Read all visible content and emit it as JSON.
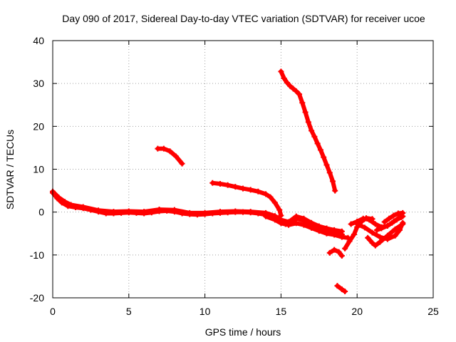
{
  "chart_data": {
    "type": "line",
    "title": "Day 090 of 2017, Sidereal Day-to-day VTEC variation (SDTVAR) for receiver ucoe",
    "xlabel": "GPS time / hours",
    "ylabel": "SDTVAR / TECUs",
    "xlim": [
      0,
      25
    ],
    "ylim": [
      -20,
      40
    ],
    "xticks": [
      0,
      5,
      10,
      15,
      20,
      25
    ],
    "yticks": [
      -20,
      -10,
      0,
      10,
      20,
      30,
      40
    ],
    "xtick_labels": [
      "0",
      "5",
      "10",
      "15",
      "20",
      "25"
    ],
    "ytick_labels": [
      "-20",
      "-10",
      "0",
      "10",
      "20",
      "30",
      "40"
    ],
    "grid": true,
    "legend": "none",
    "color": "#ff0000",
    "series": [
      {
        "name": "main-band-a",
        "points": [
          [
            0,
            4.5
          ],
          [
            0.3,
            3.2
          ],
          [
            0.6,
            2.2
          ],
          [
            1,
            1.4
          ],
          [
            1.5,
            1.1
          ],
          [
            2,
            0.9
          ],
          [
            2.5,
            0.5
          ],
          [
            3,
            0.1
          ],
          [
            3.5,
            -0.3
          ],
          [
            4,
            -0.3
          ],
          [
            4.5,
            -0.2
          ],
          [
            5,
            -0.1
          ],
          [
            5.5,
            -0.2
          ],
          [
            6,
            -0.3
          ],
          [
            6.5,
            -0.1
          ],
          [
            7,
            0.2
          ],
          [
            7.5,
            0.3
          ],
          [
            8,
            0.1
          ],
          [
            8.5,
            -0.3
          ],
          [
            9,
            -0.5
          ],
          [
            9.5,
            -0.6
          ],
          [
            10,
            -0.5
          ],
          [
            10.5,
            -0.3
          ],
          [
            11,
            -0.2
          ],
          [
            11.5,
            -0.1
          ],
          [
            12,
            0
          ],
          [
            12.5,
            0
          ],
          [
            13,
            -0.1
          ],
          [
            13.5,
            -0.3
          ],
          [
            14,
            -0.6
          ],
          [
            14.5,
            -1.2
          ],
          [
            15,
            -2.2
          ],
          [
            15.3,
            -2.8
          ],
          [
            15.6,
            -2.5
          ],
          [
            16,
            -1.5
          ],
          [
            16.5,
            -2
          ],
          [
            17,
            -3
          ],
          [
            17.5,
            -3.8
          ],
          [
            18,
            -4.3
          ],
          [
            18.5,
            -4.8
          ],
          [
            19,
            -5.2
          ]
        ]
      },
      {
        "name": "main-band-b",
        "points": [
          [
            0,
            4.8
          ],
          [
            0.4,
            3.4
          ],
          [
            0.8,
            2.4
          ],
          [
            1.2,
            1.7
          ],
          [
            2,
            1.2
          ],
          [
            3,
            0.4
          ],
          [
            4,
            0.1
          ],
          [
            5,
            0.2
          ],
          [
            6,
            0.1
          ],
          [
            7,
            0.6
          ],
          [
            8,
            0.5
          ],
          [
            9,
            -0.2
          ],
          [
            10,
            -0.2
          ],
          [
            11,
            0.1
          ],
          [
            12,
            0.2
          ],
          [
            13,
            0.1
          ],
          [
            14,
            -0.2
          ],
          [
            14.6,
            -0.9
          ],
          [
            15,
            -1.8
          ],
          [
            15.5,
            -2.3
          ],
          [
            16,
            -1
          ],
          [
            16.5,
            -1.5
          ],
          [
            17,
            -2.5
          ],
          [
            17.5,
            -3.3
          ],
          [
            18,
            -3.8
          ],
          [
            18.5,
            -4.2
          ],
          [
            19,
            -4.5
          ]
        ]
      },
      {
        "name": "main-band-c",
        "points": [
          [
            14,
            -1
          ],
          [
            14.6,
            -1.8
          ],
          [
            15,
            -2.6
          ],
          [
            15.5,
            -3
          ],
          [
            16,
            -2.6
          ],
          [
            16.5,
            -3
          ],
          [
            17,
            -3.7
          ],
          [
            17.5,
            -4.4
          ],
          [
            18,
            -5
          ],
          [
            18.5,
            -5.3
          ],
          [
            19,
            -5.8
          ],
          [
            19.4,
            -6
          ]
        ]
      },
      {
        "name": "arc-7h",
        "points": [
          [
            6.9,
            14.8
          ],
          [
            7.3,
            14.8
          ],
          [
            7.7,
            14.2
          ],
          [
            8.1,
            13
          ],
          [
            8.5,
            11.3
          ]
        ]
      },
      {
        "name": "arc-10h",
        "points": [
          [
            10.5,
            6.8
          ],
          [
            11,
            6.6
          ],
          [
            11.5,
            6.3
          ],
          [
            12,
            5.9
          ],
          [
            12.5,
            5.5
          ],
          [
            13,
            5.2
          ],
          [
            13.5,
            4.8
          ],
          [
            14,
            4.2
          ],
          [
            14.3,
            3.5
          ],
          [
            14.6,
            2.2
          ],
          [
            14.9,
            0.5
          ],
          [
            15,
            -0.8
          ]
        ]
      },
      {
        "name": "arc-15h",
        "points": [
          [
            15,
            32.8
          ],
          [
            15.2,
            31.2
          ],
          [
            15.4,
            30.2
          ],
          [
            15.6,
            29.4
          ],
          [
            15.8,
            28.8
          ],
          [
            16,
            28.2
          ],
          [
            16.2,
            27.5
          ],
          [
            16.4,
            25.5
          ],
          [
            16.6,
            23.3
          ],
          [
            16.8,
            21
          ],
          [
            17,
            19
          ],
          [
            17.2,
            17.6
          ],
          [
            17.4,
            16
          ],
          [
            17.6,
            14.5
          ],
          [
            17.8,
            12.8
          ],
          [
            18,
            11
          ],
          [
            18.2,
            9.2
          ],
          [
            18.4,
            7.2
          ],
          [
            18.55,
            5
          ]
        ]
      },
      {
        "name": "arc-18h-low",
        "points": [
          [
            18.2,
            -9.5
          ],
          [
            18.5,
            -8.8
          ],
          [
            18.8,
            -9.3
          ],
          [
            19,
            -10.2
          ]
        ]
      },
      {
        "name": "arc-19h-bottom",
        "points": [
          [
            18.7,
            -17.2
          ],
          [
            19,
            -18
          ],
          [
            19.2,
            -18.5
          ]
        ]
      },
      {
        "name": "arc-19.5h",
        "points": [
          [
            19.2,
            -8.5
          ],
          [
            19.5,
            -6.8
          ],
          [
            19.8,
            -5.2
          ],
          [
            20,
            -3.5
          ],
          [
            20.3,
            -2.2
          ],
          [
            20.6,
            -1.4
          ],
          [
            21,
            -1.6
          ]
        ]
      },
      {
        "name": "arc-20h-a",
        "points": [
          [
            19.6,
            -2.8
          ],
          [
            20,
            -2.2
          ],
          [
            20.4,
            -1.5
          ],
          [
            20.8,
            -1.8
          ],
          [
            21.2,
            -2.8
          ],
          [
            21.6,
            -3.5
          ],
          [
            22,
            -3.2
          ],
          [
            22.4,
            -2.2
          ],
          [
            22.8,
            -1.2
          ],
          [
            23,
            -1
          ]
        ]
      },
      {
        "name": "arc-20h-b",
        "points": [
          [
            20,
            -2.8
          ],
          [
            20.5,
            -3.6
          ],
          [
            21,
            -4.8
          ],
          [
            21.5,
            -5.8
          ],
          [
            22,
            -6.3
          ],
          [
            22.5,
            -5.5
          ],
          [
            22.8,
            -4.2
          ],
          [
            23,
            -2.5
          ]
        ]
      },
      {
        "name": "arc-21h",
        "points": [
          [
            20.7,
            -6
          ],
          [
            21,
            -7.2
          ],
          [
            21.2,
            -7.8
          ],
          [
            21.5,
            -7
          ],
          [
            22,
            -5.5
          ],
          [
            22.5,
            -4
          ],
          [
            23,
            -2.8
          ]
        ]
      },
      {
        "name": "arc-21.5h",
        "points": [
          [
            21.3,
            -4.2
          ],
          [
            21.6,
            -3.8
          ],
          [
            22,
            -3.2
          ],
          [
            22.3,
            -2.5
          ],
          [
            22.6,
            -1.8
          ],
          [
            22.9,
            -1.2
          ]
        ]
      },
      {
        "name": "arc-21.8h",
        "points": [
          [
            21.8,
            -2.3
          ],
          [
            22.1,
            -1.5
          ],
          [
            22.4,
            -0.8
          ],
          [
            22.7,
            -0.3
          ],
          [
            23,
            -0.2
          ]
        ]
      }
    ]
  }
}
